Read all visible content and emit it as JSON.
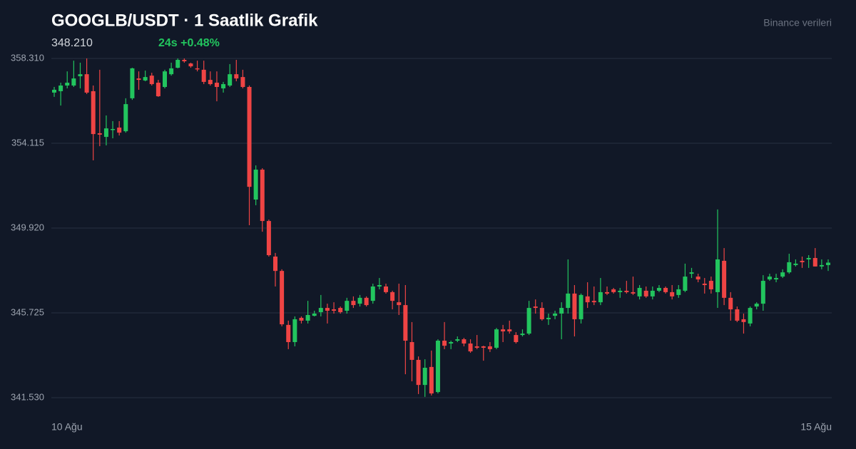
{
  "chart_data": {
    "type": "candlestick",
    "title": "GOOGLB/USDT · 1 Saatlik Grafik",
    "price": "348.210",
    "change": "24s +0.48%",
    "change_color": "#22c55e",
    "source": "Binance verileri",
    "up_color": "#22c55e",
    "down_color": "#ef4444",
    "grid": true,
    "ylim": [
      341.53,
      358.31
    ],
    "yticks": [
      {
        "value": 358.31,
        "label": "358.310"
      },
      {
        "value": 354.115,
        "label": "354.115"
      },
      {
        "value": 349.92,
        "label": "349.920"
      },
      {
        "value": 345.725,
        "label": "345.725"
      },
      {
        "value": 341.53,
        "label": "341.530"
      }
    ],
    "categories": [
      "10 Ağu",
      null,
      null,
      null,
      null,
      null,
      null,
      null,
      null,
      null,
      null,
      null,
      null,
      null,
      null,
      null,
      null,
      null,
      null,
      null,
      null,
      null,
      null,
      null,
      null,
      null,
      null,
      null,
      null,
      null,
      null,
      null,
      null,
      null,
      null,
      null,
      null,
      null,
      null,
      null,
      null,
      null,
      null,
      null,
      null,
      null,
      null,
      null,
      null,
      null,
      null,
      null,
      null,
      null,
      null,
      null,
      null,
      null,
      null,
      null,
      null,
      null,
      null,
      null,
      null,
      null,
      null,
      null,
      null,
      null,
      null,
      null,
      null,
      null,
      null,
      null,
      null,
      null,
      null,
      null,
      null,
      null,
      null,
      null,
      null,
      null,
      null,
      null,
      null,
      null,
      null,
      null,
      null,
      null,
      null,
      null,
      null,
      null,
      null,
      null,
      null,
      null,
      null,
      null,
      null,
      null,
      null,
      null,
      null,
      null,
      null,
      null,
      null,
      null,
      null,
      null,
      null,
      null,
      null,
      "15 Ağu"
    ],
    "open": [
      356.62,
      356.69,
      356.97,
      356.97,
      357.43,
      357.53,
      356.69,
      354.61,
      354.43,
      354.78,
      354.89,
      354.71,
      356.34,
      357.32,
      357.22,
      357.46,
      357.11,
      356.9,
      357.53,
      357.85,
      358.24,
      358.06,
      357.82,
      357.75,
      357.25,
      357.11,
      356.83,
      356.97,
      357.53,
      357.39,
      356.9,
      351.33,
      352.81,
      350.27,
      348.51,
      347.8,
      345.13,
      344.28,
      345.48,
      345.34,
      345.58,
      345.76,
      345.97,
      345.9,
      345.97,
      345.83,
      346.32,
      346.18,
      346.47,
      346.32,
      347.03,
      347.03,
      346.75,
      346.25,
      346.11,
      344.28,
      343.4,
      342.16,
      343.05,
      341.81,
      344.35,
      344.21,
      344.35,
      344.42,
      344.21,
      344.07,
      344.07,
      344.07,
      344.0,
      344.91,
      344.91,
      344.63,
      344.63,
      344.7,
      346.04,
      345.97,
      345.41,
      345.58,
      345.69,
      345.97,
      346.68,
      345.41,
      346.54,
      346.32,
      346.25,
      346.75,
      346.89,
      346.75,
      346.82,
      346.75,
      346.54,
      346.82,
      346.54,
      346.82,
      346.96,
      346.75,
      346.61,
      346.82,
      347.66,
      347.52,
      347.17,
      347.31,
      346.75,
      348.3,
      346.47,
      345.9,
      345.41,
      345.2,
      346.04,
      346.18,
      347.38,
      347.38,
      347.52,
      347.73,
      348.09,
      348.3,
      348.37,
      348.44,
      348.02,
      348.09
    ],
    "high": [
      356.9,
      357.11,
      357.67,
      358.2,
      358.1,
      358.31,
      356.97,
      357.75,
      355.49,
      355.21,
      355.21,
      356.34,
      357.85,
      357.67,
      357.71,
      357.6,
      357.25,
      357.75,
      358.1,
      358.31,
      358.31,
      358.1,
      358.2,
      358.2,
      357.67,
      357.67,
      357.15,
      358.03,
      358.24,
      357.75,
      356.97,
      353.02,
      352.88,
      350.34,
      348.69,
      347.88,
      345.34,
      345.55,
      345.55,
      346.32,
      345.83,
      346.61,
      346.18,
      346.25,
      346.04,
      346.47,
      346.54,
      346.61,
      346.54,
      347.17,
      347.45,
      347.17,
      346.82,
      347.17,
      347.1,
      345.27,
      343.57,
      343.43,
      343.86,
      344.42,
      345.27,
      344.35,
      344.56,
      344.49,
      344.42,
      344.63,
      344.1,
      344.28,
      344.98,
      345.13,
      345.34,
      344.77,
      344.91,
      346.32,
      346.39,
      346.25,
      345.69,
      345.83,
      346.25,
      348.37,
      347.1,
      346.68,
      347.24,
      347.03,
      347.45,
      347.03,
      346.96,
      346.96,
      347.31,
      347.52,
      347.1,
      347.03,
      347.03,
      347.1,
      347.03,
      347.1,
      347.1,
      348.16,
      347.95,
      347.66,
      347.45,
      347.52,
      350.84,
      348.93,
      346.75,
      346.04,
      345.69,
      346.04,
      346.25,
      347.59,
      347.66,
      347.66,
      347.88,
      348.65,
      348.37,
      348.51,
      348.58,
      348.93,
      348.37,
      348.37
    ],
    "low": [
      356.41,
      355.98,
      356.83,
      356.9,
      356.83,
      356.55,
      353.27,
      353.97,
      354.01,
      354.36,
      354.5,
      354.64,
      356.26,
      356.76,
      357.18,
      356.97,
      356.41,
      356.83,
      357.46,
      357.82,
      358.1,
      357.85,
      357.67,
      357.04,
      356.97,
      356.19,
      356.62,
      356.9,
      357.18,
      356.83,
      350.06,
      351.05,
      349.74,
      348.51,
      347.03,
      345.06,
      343.93,
      344.07,
      345.2,
      345.2,
      345.55,
      345.55,
      345.2,
      345.69,
      345.69,
      345.69,
      345.97,
      346.04,
      346.04,
      346.18,
      346.89,
      346.68,
      345.9,
      345.62,
      342.69,
      342.34,
      341.71,
      341.57,
      341.64,
      341.74,
      343.93,
      343.93,
      344.28,
      344.07,
      343.75,
      343.93,
      343.36,
      343.79,
      343.93,
      344.28,
      344.7,
      344.21,
      344.56,
      344.63,
      345.69,
      345.34,
      345.13,
      345.41,
      344.42,
      345.69,
      344.56,
      345.2,
      345.97,
      346.11,
      346.11,
      346.61,
      346.68,
      346.47,
      346.68,
      346.61,
      346.39,
      346.47,
      346.39,
      346.75,
      346.68,
      346.39,
      346.47,
      346.75,
      347.45,
      347.24,
      346.68,
      346.68,
      345.97,
      346.11,
      345.34,
      345.27,
      344.7,
      345.06,
      345.9,
      345.83,
      347.31,
      347.24,
      347.45,
      347.66,
      348.02,
      347.95,
      347.95,
      348.02,
      347.88,
      347.8
    ],
    "close": [
      356.76,
      356.97,
      357.11,
      357.32,
      357.53,
      356.62,
      354.57,
      354.54,
      354.85,
      354.82,
      354.64,
      356.05,
      357.82,
      357.25,
      357.39,
      357.04,
      356.44,
      357.67,
      357.82,
      358.24,
      358.17,
      357.92,
      357.78,
      357.15,
      357.04,
      356.9,
      357.04,
      357.53,
      357.32,
      356.9,
      351.96,
      352.81,
      350.27,
      348.58,
      347.8,
      345.16,
      344.28,
      345.41,
      345.34,
      345.62,
      345.69,
      345.97,
      345.83,
      345.83,
      345.76,
      346.32,
      346.11,
      346.47,
      346.11,
      347.03,
      347.1,
      346.75,
      346.32,
      346.11,
      344.35,
      343.4,
      342.16,
      343.01,
      341.74,
      344.35,
      344.1,
      344.28,
      344.42,
      344.21,
      343.82,
      344.0,
      344.0,
      343.93,
      344.91,
      344.81,
      344.81,
      344.28,
      344.7,
      345.97,
      345.97,
      345.41,
      345.48,
      345.69,
      345.97,
      346.68,
      345.41,
      346.61,
      346.25,
      346.25,
      346.75,
      346.68,
      346.75,
      346.82,
      346.75,
      346.68,
      346.96,
      346.54,
      346.82,
      346.96,
      346.75,
      346.54,
      346.89,
      347.52,
      347.73,
      347.38,
      347.1,
      346.89,
      348.37,
      346.47,
      345.9,
      345.34,
      345.27,
      345.97,
      346.18,
      347.31,
      347.52,
      347.45,
      347.73,
      348.23,
      348.16,
      348.23,
      348.44,
      348.02,
      348.09,
      348.21
    ]
  }
}
